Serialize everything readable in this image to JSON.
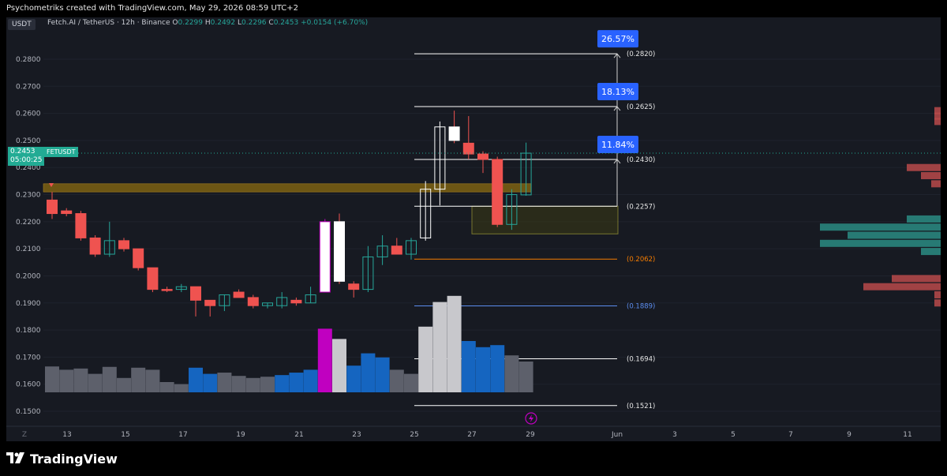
{
  "header": {
    "title": "Psychometriks created with TradingView.com, May 29, 2026 08:59 UTC+2"
  },
  "chart_header": {
    "currency_label": "USDT",
    "symbol_line": "Fetch.AI / TetherUS · 12h · Binance",
    "open_label": "O",
    "open": "0.2299",
    "high_label": "H",
    "high": "0.2492",
    "low_label": "L",
    "low": "0.2296",
    "close_label": "C",
    "close": "0.2453",
    "change": "+0.0154 (+6.70%)"
  },
  "price_tag": {
    "price": "0.2453",
    "countdown": "05:00:25",
    "ticker": "FETUSDT"
  },
  "brand": {
    "name": "TradingView",
    "logo_icon": "tradingview-logo-icon"
  },
  "colors": {
    "up": "#26a69a",
    "down": "#ef5350",
    "up_body": "#ffffff",
    "vol_grey": "#5d606b",
    "vol_blue": "#1565c0",
    "vol_light": "#c8c8cc",
    "vol_magenta": "#c000c0",
    "fib_white": "#ffffff",
    "fib_orange": "#f57c00",
    "fib_blue": "#5b8def",
    "zone_fill": "#8a6a10",
    "target_box": "#2962ff",
    "profile_green": "#2a8c82",
    "profile_red": "#b94a4a"
  },
  "chart_data": {
    "type": "candlestick",
    "ylim": [
      0.145,
      0.295
    ],
    "y_ticks": [
      "0.1500",
      "0.1600",
      "0.1700",
      "0.1800",
      "0.1900",
      "0.2000",
      "0.2100",
      "0.2200",
      "0.2300",
      "0.2400",
      "0.2500",
      "0.2600",
      "0.2700",
      "0.2800"
    ],
    "x_ticks": [
      "Z",
      "13",
      "15",
      "17",
      "19",
      "21",
      "23",
      "25",
      "27",
      "29",
      "Jun",
      "3",
      "5",
      "7",
      "9",
      "11"
    ],
    "candles": [
      {
        "o": 0.228,
        "h": 0.231,
        "l": 0.221,
        "c": 0.223,
        "dir": "down"
      },
      {
        "o": 0.224,
        "h": 0.225,
        "l": 0.222,
        "c": 0.223,
        "dir": "down"
      },
      {
        "o": 0.223,
        "h": 0.224,
        "l": 0.213,
        "c": 0.214,
        "dir": "down"
      },
      {
        "o": 0.214,
        "h": 0.215,
        "l": 0.207,
        "c": 0.208,
        "dir": "down"
      },
      {
        "o": 0.208,
        "h": 0.22,
        "l": 0.207,
        "c": 0.213,
        "dir": "up"
      },
      {
        "o": 0.213,
        "h": 0.214,
        "l": 0.209,
        "c": 0.21,
        "dir": "down"
      },
      {
        "o": 0.21,
        "h": 0.21,
        "l": 0.202,
        "c": 0.203,
        "dir": "down"
      },
      {
        "o": 0.203,
        "h": 0.203,
        "l": 0.194,
        "c": 0.195,
        "dir": "down"
      },
      {
        "o": 0.195,
        "h": 0.196,
        "l": 0.194,
        "c": 0.195,
        "dir": "down"
      },
      {
        "o": 0.195,
        "h": 0.197,
        "l": 0.194,
        "c": 0.196,
        "dir": "up"
      },
      {
        "o": 0.196,
        "h": 0.196,
        "l": 0.185,
        "c": 0.191,
        "dir": "down"
      },
      {
        "o": 0.191,
        "h": 0.191,
        "l": 0.185,
        "c": 0.189,
        "dir": "down"
      },
      {
        "o": 0.189,
        "h": 0.193,
        "l": 0.187,
        "c": 0.193,
        "dir": "up"
      },
      {
        "o": 0.194,
        "h": 0.195,
        "l": 0.192,
        "c": 0.192,
        "dir": "down"
      },
      {
        "o": 0.192,
        "h": 0.193,
        "l": 0.188,
        "c": 0.189,
        "dir": "down"
      },
      {
        "o": 0.189,
        "h": 0.19,
        "l": 0.188,
        "c": 0.19,
        "dir": "up"
      },
      {
        "o": 0.189,
        "h": 0.194,
        "l": 0.188,
        "c": 0.192,
        "dir": "up"
      },
      {
        "o": 0.191,
        "h": 0.192,
        "l": 0.189,
        "c": 0.19,
        "dir": "down"
      },
      {
        "o": 0.19,
        "h": 0.196,
        "l": 0.19,
        "c": 0.193,
        "dir": "up"
      },
      {
        "o": 0.194,
        "h": 0.221,
        "l": 0.194,
        "c": 0.22,
        "dir": "up",
        "special": "magenta"
      },
      {
        "o": 0.22,
        "h": 0.223,
        "l": 0.197,
        "c": 0.198,
        "dir": "down",
        "special": "white"
      },
      {
        "o": 0.197,
        "h": 0.198,
        "l": 0.192,
        "c": 0.195,
        "dir": "down"
      },
      {
        "o": 0.195,
        "h": 0.211,
        "l": 0.194,
        "c": 0.207,
        "dir": "up"
      },
      {
        "o": 0.207,
        "h": 0.215,
        "l": 0.204,
        "c": 0.211,
        "dir": "up"
      },
      {
        "o": 0.211,
        "h": 0.214,
        "l": 0.208,
        "c": 0.208,
        "dir": "down"
      },
      {
        "o": 0.208,
        "h": 0.214,
        "l": 0.206,
        "c": 0.213,
        "dir": "up"
      },
      {
        "o": 0.214,
        "h": 0.235,
        "l": 0.213,
        "c": 0.232,
        "dir": "up",
        "special": "hollow"
      },
      {
        "o": 0.232,
        "h": 0.257,
        "l": 0.226,
        "c": 0.255,
        "dir": "up",
        "special": "hollow"
      },
      {
        "o": 0.255,
        "h": 0.261,
        "l": 0.249,
        "c": 0.25,
        "dir": "down",
        "special": "white"
      },
      {
        "o": 0.249,
        "h": 0.259,
        "l": 0.243,
        "c": 0.245,
        "dir": "down"
      },
      {
        "o": 0.245,
        "h": 0.246,
        "l": 0.238,
        "c": 0.243,
        "dir": "down"
      },
      {
        "o": 0.243,
        "h": 0.244,
        "l": 0.218,
        "c": 0.219,
        "dir": "down"
      },
      {
        "o": 0.219,
        "h": 0.232,
        "l": 0.217,
        "c": 0.23,
        "dir": "up"
      },
      {
        "o": 0.2299,
        "h": 0.2492,
        "l": 0.2296,
        "c": 0.2453,
        "dir": "up"
      }
    ],
    "volume": [
      {
        "v": 0.63,
        "c": "grey"
      },
      {
        "v": 0.55,
        "c": "grey"
      },
      {
        "v": 0.58,
        "c": "grey"
      },
      {
        "v": 0.45,
        "c": "grey"
      },
      {
        "v": 0.62,
        "c": "grey"
      },
      {
        "v": 0.35,
        "c": "grey"
      },
      {
        "v": 0.6,
        "c": "grey"
      },
      {
        "v": 0.55,
        "c": "grey"
      },
      {
        "v": 0.25,
        "c": "grey"
      },
      {
        "v": 0.2,
        "c": "grey"
      },
      {
        "v": 0.6,
        "c": "blue"
      },
      {
        "v": 0.45,
        "c": "blue"
      },
      {
        "v": 0.48,
        "c": "grey"
      },
      {
        "v": 0.4,
        "c": "grey"
      },
      {
        "v": 0.35,
        "c": "grey"
      },
      {
        "v": 0.38,
        "c": "grey"
      },
      {
        "v": 0.42,
        "c": "blue"
      },
      {
        "v": 0.48,
        "c": "blue"
      },
      {
        "v": 0.55,
        "c": "blue"
      },
      {
        "v": 1.55,
        "c": "magenta"
      },
      {
        "v": 1.3,
        "c": "light"
      },
      {
        "v": 0.65,
        "c": "blue"
      },
      {
        "v": 0.95,
        "c": "blue"
      },
      {
        "v": 0.85,
        "c": "blue"
      },
      {
        "v": 0.55,
        "c": "grey"
      },
      {
        "v": 0.45,
        "c": "grey"
      },
      {
        "v": 1.6,
        "c": "light"
      },
      {
        "v": 2.2,
        "c": "light"
      },
      {
        "v": 2.35,
        "c": "light"
      },
      {
        "v": 1.25,
        "c": "blue"
      },
      {
        "v": 1.1,
        "c": "blue"
      },
      {
        "v": 1.15,
        "c": "blue"
      },
      {
        "v": 0.9,
        "c": "grey"
      },
      {
        "v": 0.75,
        "c": "grey"
      }
    ],
    "fib_levels": [
      {
        "price": 0.282,
        "label": "(0.2820)",
        "color": "white"
      },
      {
        "price": 0.2625,
        "label": "(0.2625)",
        "color": "white"
      },
      {
        "price": 0.243,
        "label": "(0.2430)",
        "color": "white"
      },
      {
        "price": 0.2257,
        "label": "(0.2257)",
        "color": "white"
      },
      {
        "price": 0.2062,
        "label": "(0.2062)",
        "color": "orange"
      },
      {
        "price": 0.1889,
        "label": "(0.1889)",
        "color": "blue"
      },
      {
        "price": 0.1694,
        "label": "(0.1694)",
        "color": "white"
      },
      {
        "price": 0.1521,
        "label": "(0.1521)",
        "color": "white"
      }
    ],
    "targets": [
      {
        "price": 0.282,
        "label": "26.57%"
      },
      {
        "price": 0.2625,
        "label": "18.13%"
      },
      {
        "price": 0.243,
        "label": "11.84%"
      }
    ],
    "resistance_zone": [
      0.231,
      0.234
    ],
    "support_box": [
      0.2155,
      0.2257
    ],
    "current_price": 0.2453
  }
}
